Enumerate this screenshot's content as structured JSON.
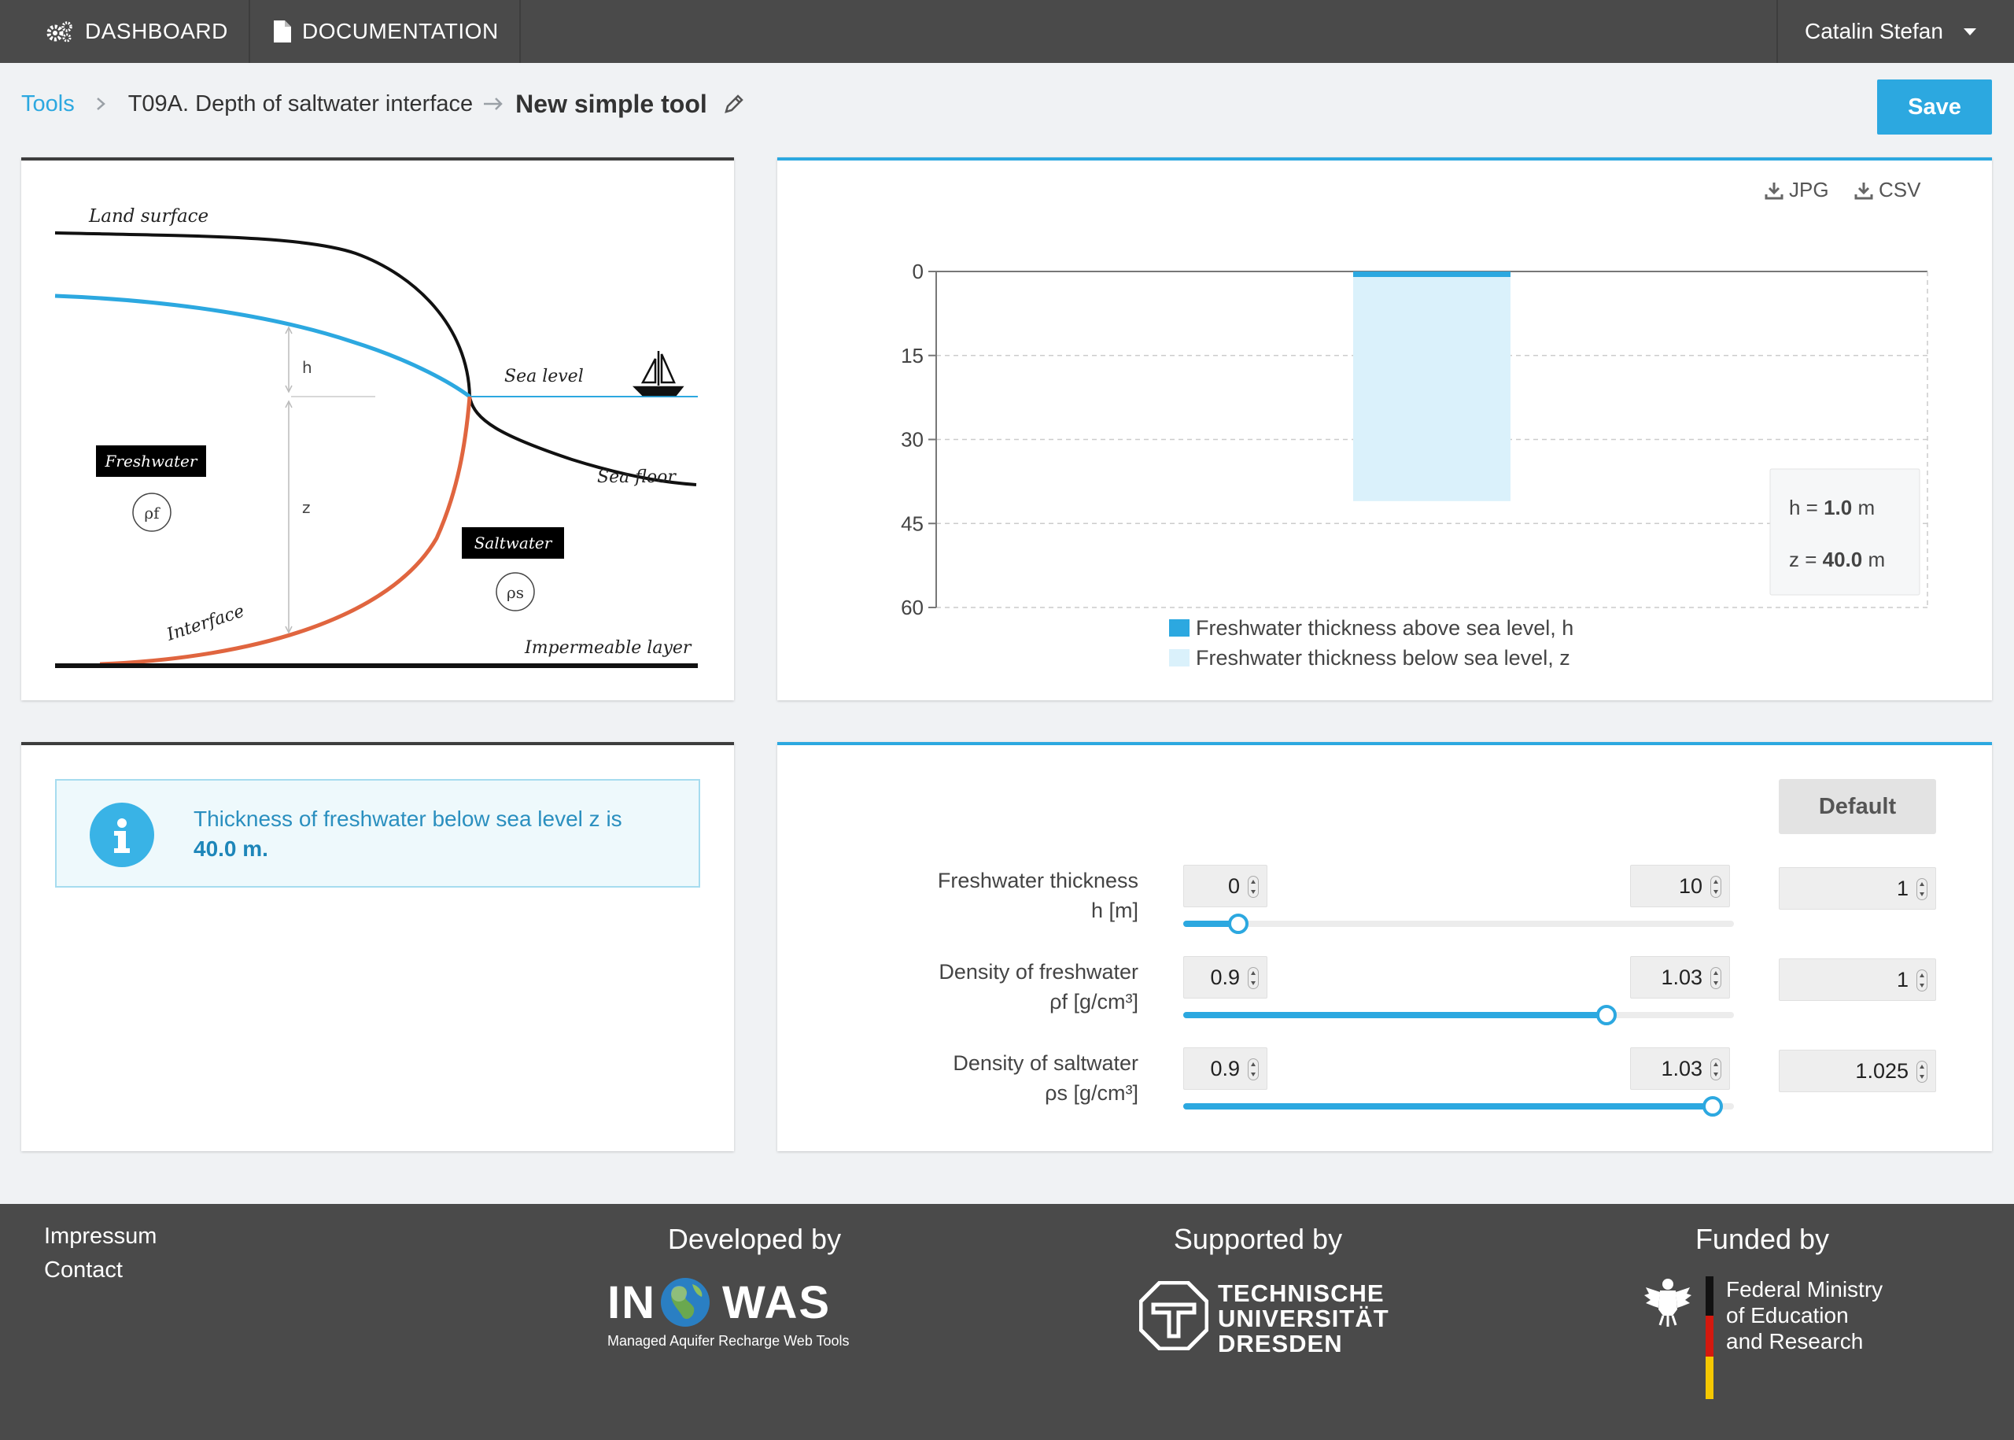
{
  "nav": {
    "dashboard": "DASHBOARD",
    "documentation": "DOCUMENTATION",
    "user": "Catalin Stefan"
  },
  "breadcrumb": {
    "tools": "Tools",
    "tool": "T09A. Depth of saltwater interface",
    "current": "New simple tool"
  },
  "save_label": "Save",
  "diagram": {
    "land_surface": "Land surface",
    "sea_level": "Sea level",
    "sea_floor": "Sea floor",
    "freshwater": "Freshwater",
    "rho_f": "ρf",
    "saltwater": "Saltwater",
    "rho_s": "ρs",
    "interface": "Interface",
    "impermeable": "Impermeable layer",
    "h": "h",
    "z": "z"
  },
  "chart_data": {
    "type": "bar",
    "stacked": true,
    "y_inverted": true,
    "ylim": [
      0,
      60
    ],
    "yticks": [
      0,
      15,
      30,
      45,
      60
    ],
    "series": [
      {
        "name": "Freshwater thickness above sea level, h",
        "value": 1.0,
        "color": "#2ca8e0"
      },
      {
        "name": "Freshwater thickness below sea level, z",
        "value": 40.0,
        "color": "#daf1fb"
      }
    ],
    "tooltip": {
      "h_label": "h = ",
      "h_value": "1.0",
      "z_label": "z = ",
      "z_value": "40.0",
      "unit": " m"
    },
    "grid": true,
    "downloads": {
      "jpg": "JPG",
      "csv": "CSV"
    }
  },
  "info": {
    "text": "Thickness of freshwater below sea level z is",
    "value": "40.0 m."
  },
  "params": {
    "default_label": "Default",
    "rows": [
      {
        "label1": "Freshwater thickness",
        "label2": "h [m]",
        "min": "0",
        "max": "10",
        "value": "1",
        "fraction": 0.1
      },
      {
        "label1": "Density of freshwater",
        "label2": "ρf [g/cm³]",
        "min": "0.9",
        "max": "1.03",
        "value": "1",
        "fraction": 0.769
      },
      {
        "label1": "Density of saltwater",
        "label2": "ρs [g/cm³]",
        "min": "0.9",
        "max": "1.03",
        "value": "1.025",
        "fraction": 0.962
      }
    ]
  },
  "footer": {
    "impressum": "Impressum",
    "contact": "Contact",
    "developed_by": "Developed by",
    "supported_by": "Supported by",
    "funded_by": "Funded by",
    "inowas_in": "IN",
    "inowas_was": "WAS",
    "inowas_sub": "Managed Aquifer Recharge Web Tools",
    "tud_1": "TECHNISCHE",
    "tud_2": "UNIVERSITÄT",
    "tud_3": "DRESDEN",
    "bmbf_1": "Federal Ministry",
    "bmbf_2": "of Education",
    "bmbf_3": "and Research"
  }
}
